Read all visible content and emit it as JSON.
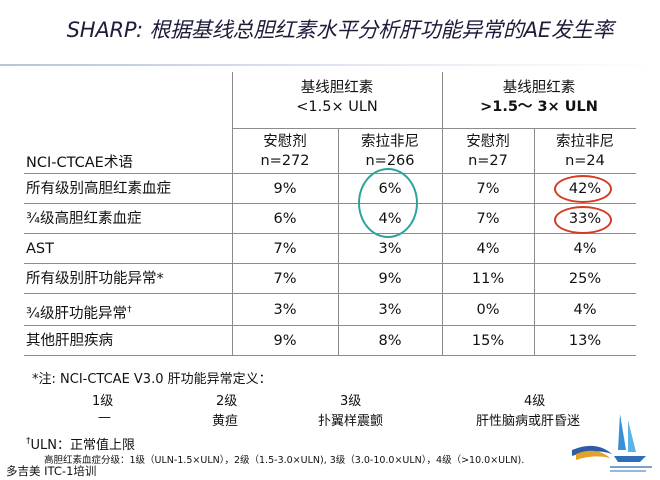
{
  "title": "SHARP: 根据基线总胆红素水平分析肝功能异常的AE发生率",
  "header": {
    "group1_line1": "基线胆红素",
    "group1_line2": "<1.5× ULN",
    "group2_line1": "基线胆红素",
    "group2_line2": ">1.5～ 3× ULN",
    "row_label_header": "NCI-CTCAE术语",
    "columns": [
      {
        "name": "安慰剂",
        "n": "n=272"
      },
      {
        "name": "索拉非尼",
        "n": "n=266"
      },
      {
        "name": "安慰剂",
        "n": "n=27"
      },
      {
        "name": "索拉非尼",
        "n": "n=24"
      }
    ]
  },
  "rows": [
    {
      "label": "所有级别高胆红素血症",
      "values": [
        "9%",
        "6%",
        "7%",
        "42%"
      ]
    },
    {
      "label": "¾级高胆红素血症",
      "values": [
        "6%",
        "4%",
        "7%",
        "33%"
      ]
    },
    {
      "label": "AST",
      "values": [
        "7%",
        "3%",
        "4%",
        "4%"
      ]
    },
    {
      "label": "所有级别肝功能异常*",
      "values": [
        "7%",
        "9%",
        "11%",
        "25%"
      ]
    },
    {
      "label": "¾级肝功能异常",
      "label_sup": "†",
      "values": [
        "3%",
        "3%",
        "0%",
        "4%"
      ]
    },
    {
      "label": "其他肝胆疾病",
      "values": [
        "9%",
        "8%",
        "15%",
        "13%"
      ]
    }
  ],
  "footnotes": {
    "note1": "*注:   NCI-CTCAE V3.0 肝功能异常定义：",
    "grades": [
      "1级",
      "2级",
      "3级",
      "4级"
    ],
    "grade_desc": [
      "—",
      "黄疸",
      "扑翼样震颤",
      "肝性脑病或肝昏迷"
    ],
    "uln_mark": "†",
    "uln": "ULN：正常值上限",
    "bilirubin_grades": "高胆红素血症分级：1级（ULN-1.5×ULN），2级（1.5-3.0×ULN), 3级（3.0-10.0×ULN），4级（>10.0×ULN).",
    "trainer": "多吉美 ITC-1培训"
  },
  "colors": {
    "red_highlight": "#d23c23",
    "teal_highlight": "#2ba39a",
    "title": "#1d1d3a"
  }
}
